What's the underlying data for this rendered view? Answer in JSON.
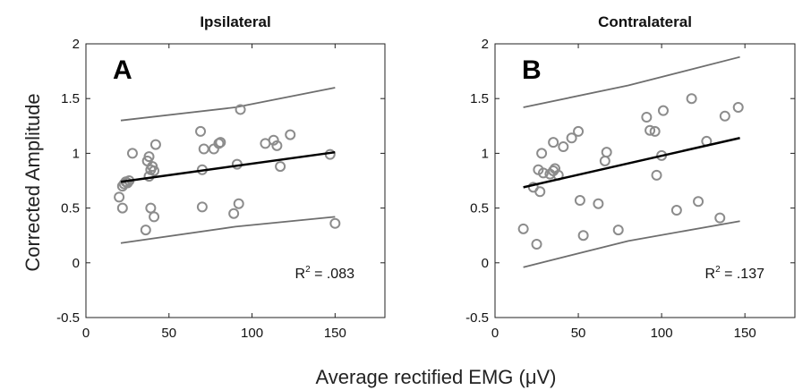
{
  "figure": {
    "ylabel": "Corrected Amplitude",
    "xlabel": "Average rectified EMG (μV)"
  },
  "chart_data": [
    {
      "type": "scatter",
      "panel_label": "A",
      "title": "Ipsilateral",
      "xlim": [
        0,
        180
      ],
      "ylim": [
        -0.5,
        2
      ],
      "xticks": [
        "0",
        "50",
        "100",
        "150"
      ],
      "yticks": [
        "-0.5",
        "0",
        "0.5",
        "1",
        "1.5",
        "2"
      ],
      "grid": false,
      "annotation": {
        "base": "R",
        "sup": "2",
        "rest": " = .083"
      },
      "colors": {
        "points": "#8c8c8c",
        "fit": "#000000",
        "ci": "#6e6e6e"
      },
      "points": [
        [
          20,
          0.6
        ],
        [
          22,
          0.5
        ],
        [
          22,
          0.7
        ],
        [
          23,
          0.72
        ],
        [
          24,
          0.74
        ],
        [
          25,
          0.73
        ],
        [
          26,
          0.75
        ],
        [
          28,
          1.0
        ],
        [
          36,
          0.3
        ],
        [
          37,
          0.93
        ],
        [
          38,
          0.79
        ],
        [
          38,
          0.97
        ],
        [
          39,
          0.5
        ],
        [
          39,
          0.85
        ],
        [
          40,
          0.88
        ],
        [
          41,
          0.42
        ],
        [
          41,
          0.84
        ],
        [
          42,
          1.08
        ],
        [
          69,
          1.2
        ],
        [
          70,
          0.51
        ],
        [
          70,
          0.85
        ],
        [
          71,
          1.04
        ],
        [
          77,
          1.04
        ],
        [
          80,
          1.09
        ],
        [
          81,
          1.1
        ],
        [
          89,
          0.45
        ],
        [
          91,
          0.9
        ],
        [
          92,
          0.54
        ],
        [
          93,
          1.4
        ],
        [
          108,
          1.09
        ],
        [
          113,
          1.12
        ],
        [
          115,
          1.07
        ],
        [
          117,
          0.88
        ],
        [
          123,
          1.17
        ],
        [
          147,
          0.99
        ],
        [
          150,
          0.36
        ]
      ],
      "fit": [
        [
          21,
          0.74
        ],
        [
          150,
          1.01
        ]
      ],
      "ci_upper": [
        [
          21,
          1.3
        ],
        [
          90,
          1.42
        ],
        [
          150,
          1.6
        ]
      ],
      "ci_lower": [
        [
          21,
          0.18
        ],
        [
          90,
          0.33
        ],
        [
          150,
          0.42
        ]
      ]
    },
    {
      "type": "scatter",
      "panel_label": "B",
      "title": "Contralateral",
      "xlim": [
        0,
        180
      ],
      "ylim": [
        -0.5,
        2
      ],
      "xticks": [
        "0",
        "50",
        "100",
        "150"
      ],
      "yticks": [
        "-0.5",
        "0",
        "0.5",
        "1",
        "1.5",
        "2"
      ],
      "grid": false,
      "annotation": {
        "base": "R",
        "sup": "2",
        "rest": " = .137"
      },
      "colors": {
        "points": "#8c8c8c",
        "fit": "#000000",
        "ci": "#6e6e6e"
      },
      "points": [
        [
          17,
          0.31
        ],
        [
          23,
          0.69
        ],
        [
          25,
          0.17
        ],
        [
          26,
          0.85
        ],
        [
          27,
          0.65
        ],
        [
          28,
          1.0
        ],
        [
          29,
          0.82
        ],
        [
          33,
          0.81
        ],
        [
          35,
          1.1
        ],
        [
          35,
          0.84
        ],
        [
          36,
          0.86
        ],
        [
          38,
          0.8
        ],
        [
          41,
          1.06
        ],
        [
          46,
          1.14
        ],
        [
          50,
          1.2
        ],
        [
          51,
          0.57
        ],
        [
          53,
          0.25
        ],
        [
          62,
          0.54
        ],
        [
          66,
          0.93
        ],
        [
          67,
          1.01
        ],
        [
          74,
          0.3
        ],
        [
          91,
          1.33
        ],
        [
          93,
          1.21
        ],
        [
          96,
          1.2
        ],
        [
          97,
          0.8
        ],
        [
          100,
          0.98
        ],
        [
          101,
          1.39
        ],
        [
          109,
          0.48
        ],
        [
          118,
          1.5
        ],
        [
          122,
          0.56
        ],
        [
          127,
          1.11
        ],
        [
          135,
          0.41
        ],
        [
          138,
          1.34
        ],
        [
          146,
          1.42
        ]
      ],
      "fit": [
        [
          17,
          0.69
        ],
        [
          147,
          1.14
        ]
      ],
      "ci_upper": [
        [
          17,
          1.42
        ],
        [
          80,
          1.62
        ],
        [
          147,
          1.88
        ]
      ],
      "ci_lower": [
        [
          17,
          -0.04
        ],
        [
          80,
          0.2
        ],
        [
          147,
          0.38
        ]
      ]
    }
  ]
}
